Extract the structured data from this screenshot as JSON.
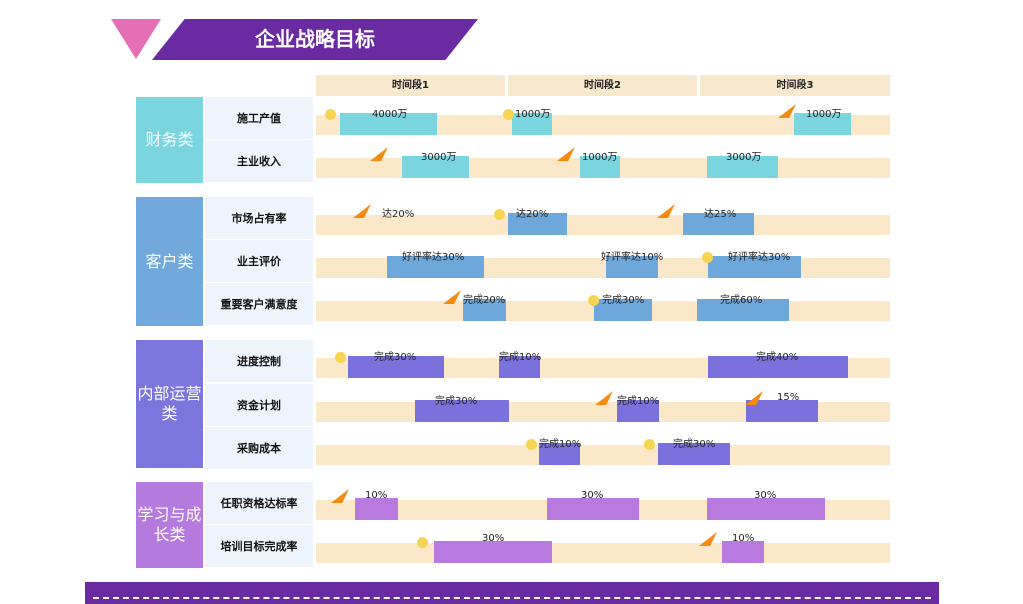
{
  "title": "企业战略目标",
  "periods": [
    "时间段1",
    "时间段2",
    "时间段3"
  ],
  "categories": [
    {
      "name": "财务类",
      "color": "#7ad5de",
      "bar_color": "#7ad5de",
      "items": [
        {
          "name": "施工产值",
          "bars": [
            {
              "label": "4000万",
              "marker": "dot"
            },
            {
              "label": "1000万",
              "marker": "dot"
            },
            {
              "label": "1000万",
              "marker": "flag"
            }
          ]
        },
        {
          "name": "主业收入",
          "bars": [
            {
              "label": "3000万",
              "marker": "flag"
            },
            {
              "label": "1000万",
              "marker": "flag"
            },
            {
              "label": "3000万",
              "marker": "none"
            }
          ]
        }
      ]
    },
    {
      "name": "客户类",
      "color": "#71a9dc",
      "bar_color": "#6ea7da",
      "items": [
        {
          "name": "市场占有率",
          "bars": [
            {
              "label": "达20%",
              "marker": "flag"
            },
            {
              "label": "达20%",
              "marker": "dot"
            },
            {
              "label": "达25%",
              "marker": "flag"
            }
          ]
        },
        {
          "name": "业主评价",
          "bars": [
            {
              "label": "好评率达30%",
              "marker": "none"
            },
            {
              "label": "好评率达10%",
              "marker": "none"
            },
            {
              "label": "好评率达30%",
              "marker": "dot"
            }
          ]
        },
        {
          "name": "重要客户满意度",
          "bars": [
            {
              "label": "完成20%",
              "marker": "flag"
            },
            {
              "label": "完成30%",
              "marker": "dot"
            },
            {
              "label": "完成60%",
              "marker": "none"
            }
          ]
        }
      ]
    },
    {
      "name": "内部运营类",
      "color": "#7b75de",
      "bar_color": "#7b71dc",
      "items": [
        {
          "name": "进度控制",
          "bars": [
            {
              "label": "完成30%",
              "marker": "dot"
            },
            {
              "label": "完成10%",
              "marker": "none"
            },
            {
              "label": "完成40%",
              "marker": "none"
            }
          ]
        },
        {
          "name": "资金计划",
          "bars": [
            {
              "label": "完成30%",
              "marker": "none"
            },
            {
              "label": "完成10%",
              "marker": "flag"
            },
            {
              "label": "15%",
              "marker": "flag"
            }
          ]
        },
        {
          "name": "采购成本",
          "bars": [
            {
              "label": "完成10%",
              "marker": "dot"
            },
            {
              "label": "完成30%",
              "marker": "dot"
            }
          ]
        }
      ]
    },
    {
      "name": "学习与成长类",
      "color": "#b57ade",
      "bar_color": "#b87ade",
      "items": [
        {
          "name": "任职资格达标率",
          "bars": [
            {
              "label": "10%",
              "marker": "flag"
            },
            {
              "label": "30%",
              "marker": "none"
            },
            {
              "label": "30%",
              "marker": "none"
            }
          ]
        },
        {
          "name": "培训目标完成率",
          "bars": [
            {
              "label": "30%",
              "marker": "dot"
            },
            {
              "label": "10%",
              "marker": "flag"
            }
          ]
        }
      ]
    }
  ],
  "colors": {
    "track": "#fbe8c9",
    "header": "#f8e9ce",
    "banner_purple": "#6a2aa2",
    "banner_pink": "#e56fb4",
    "flag": "#f58a10",
    "dot": "#f7d451"
  }
}
